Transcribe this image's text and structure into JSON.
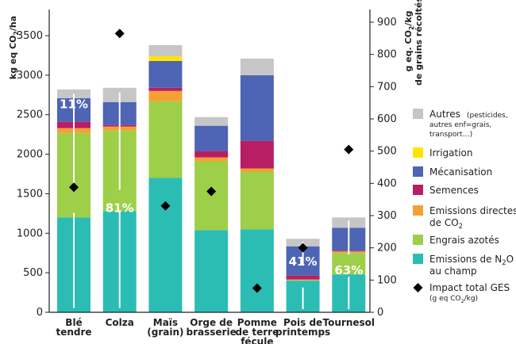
{
  "chart_data": {
    "type": "bar",
    "stacked": true,
    "categories": [
      [
        "Blé",
        "tendre"
      ],
      [
        "Colza"
      ],
      [
        "Maïs",
        "(grain)"
      ],
      [
        "Orge de",
        "brasserie"
      ],
      [
        "Pomme",
        "de terre",
        "fécule"
      ],
      [
        "Pois de",
        "printemps"
      ],
      [
        "Tournesol"
      ]
    ],
    "left_axis": {
      "label": "kg eq CO2/ha",
      "label_parts": [
        "kg eq CO",
        "2",
        "/ha"
      ],
      "min": 0,
      "max": 3500,
      "ticks": [
        "0",
        "500",
        "1000",
        "1500",
        "2000",
        "2500",
        "3000",
        "3500"
      ],
      "tick_values": [
        0,
        500,
        1000,
        1500,
        2000,
        2500,
        3000,
        3500
      ]
    },
    "right_axis": {
      "label_parts": [
        "g eq. CO",
        "2",
        "/kg"
      ],
      "label_line2": "de grains récoltés",
      "min": 0,
      "max": 900,
      "ticks": [
        "0",
        "100",
        "200",
        "300",
        "400",
        "500",
        "600",
        "700",
        "800",
        "900"
      ],
      "tick_values": [
        0,
        100,
        200,
        300,
        400,
        500,
        600,
        700,
        800,
        900
      ]
    },
    "series": [
      {
        "name": "Emissions de N2O au champ",
        "color": "#2bbdb4",
        "values": [
          1200,
          1280,
          1700,
          1040,
          1050,
          400,
          480
        ]
      },
      {
        "name": "Engrais azotés",
        "color": "#9dcf48",
        "values": [
          1070,
          1020,
          970,
          870,
          730,
          10,
          270
        ]
      },
      {
        "name": "Emissions directes de CO2",
        "color": "#f5a032",
        "values": [
          60,
          50,
          130,
          50,
          40,
          5,
          20
        ]
      },
      {
        "name": "Semances",
        "color": "#b81e63",
        "values": [
          80,
          20,
          40,
          80,
          350,
          50,
          10
        ]
      },
      {
        "name": "Mécanisation",
        "color": "#4e64b4",
        "values": [
          300,
          290,
          340,
          320,
          830,
          370,
          290
        ]
      },
      {
        "name": "Irrigation",
        "color": "#ffe400",
        "values": [
          0,
          0,
          60,
          0,
          0,
          0,
          0
        ]
      },
      {
        "name": "Autres",
        "color": "#c6c6c6",
        "values": [
          110,
          180,
          140,
          110,
          210,
          95,
          130
        ]
      }
    ],
    "impact_total": {
      "name": "Impact total GES",
      "unit_note": "g eq CO2/kg",
      "axis": "right",
      "values": [
        388,
        865,
        330,
        375,
        75,
        200,
        505
      ]
    },
    "percent_labels": [
      {
        "category_index": 0,
        "text": "11%"
      },
      {
        "category_index": 1,
        "text": "81%"
      },
      {
        "category_index": 5,
        "text": "41%"
      },
      {
        "category_index": 6,
        "text": "63%"
      }
    ],
    "legend": {
      "placement": "right",
      "items": [
        {
          "main": "Autres",
          "small": [
            "(pesticides,",
            "autres enf=grais,",
            "transport…)"
          ],
          "color": "#c6c6c6"
        },
        {
          "main": "Irrigation",
          "color": "#ffe400"
        },
        {
          "main": "Mécanisation",
          "color": "#4e64b4"
        },
        {
          "main": "Semences",
          "color": "#b81e63"
        },
        {
          "main": "Emissions directes",
          "line2_parts": [
            "de CO",
            "2",
            ""
          ],
          "color": "#f5a032"
        },
        {
          "main": "Engrais azotés",
          "color": "#9dcf48"
        },
        {
          "main_parts": [
            "Emissions de N",
            "2",
            "O"
          ],
          "line2": "au champ",
          "color": "#2bbdb4"
        },
        {
          "main": "Impact total GES",
          "small_parts": [
            "(g eq CO",
            "2",
            "/kg)"
          ],
          "marker": "diamond"
        }
      ]
    }
  }
}
